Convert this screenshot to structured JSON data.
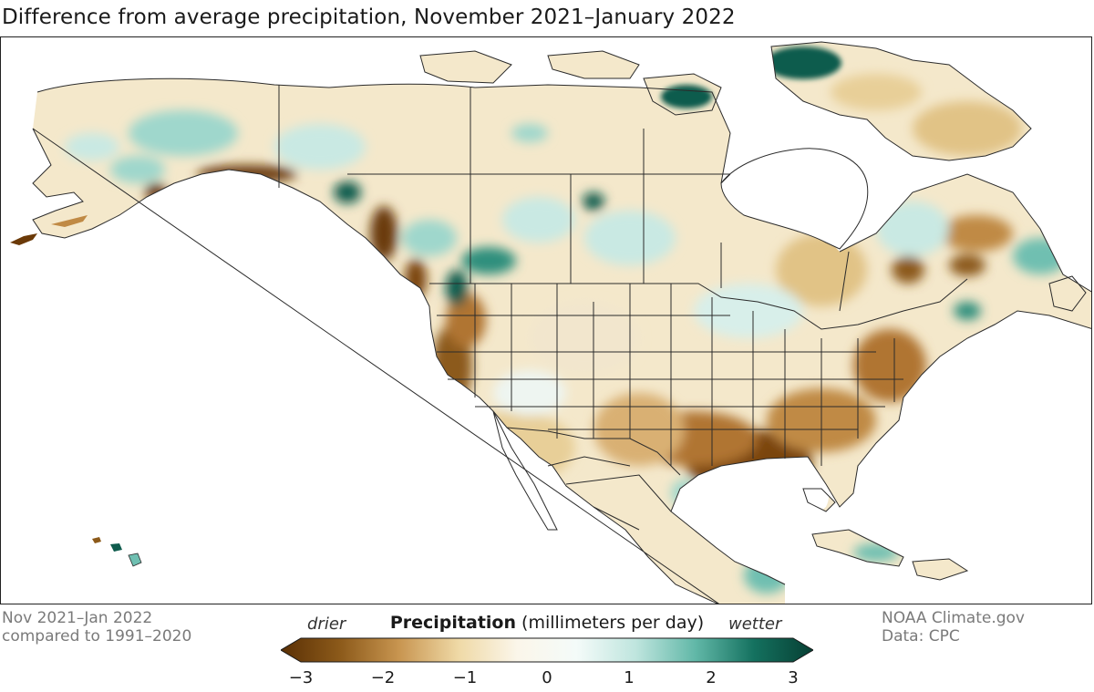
{
  "title": "Difference from average precipitation, November 2021–January 2022",
  "footer_left": {
    "line1": "Nov 2021–Jan 2022",
    "line2": "compared to 1991–2020"
  },
  "footer_right": {
    "line1": "NOAA Climate.gov",
    "line2": "Data: CPC"
  },
  "legend": {
    "title_bold": "Precipitation",
    "title_units": "(millimeters per day)",
    "drier_label": "drier",
    "wetter_label": "wetter",
    "ticks": [
      "−3",
      "−2",
      "−1",
      "0",
      "1",
      "2",
      "3"
    ],
    "range": [
      -3,
      3
    ],
    "colors": [
      "#5a3005",
      "#8c5a1a",
      "#c89550",
      "#efd9a6",
      "#fbf6ea",
      "#f4fbf9",
      "#bfe5de",
      "#62b8a8",
      "#14715f",
      "#073f33"
    ]
  },
  "map_colors": {
    "land_base": "#f4e8cb",
    "border": "#2b2b2b",
    "dry_strong": "#7a4410",
    "dry_moderate": "#c08a45",
    "dry_light": "#e5c88f",
    "wet_light": "#c9e9e3",
    "wet_moderate": "#6fbfb1",
    "wet_strong": "#0f5c4d"
  }
}
